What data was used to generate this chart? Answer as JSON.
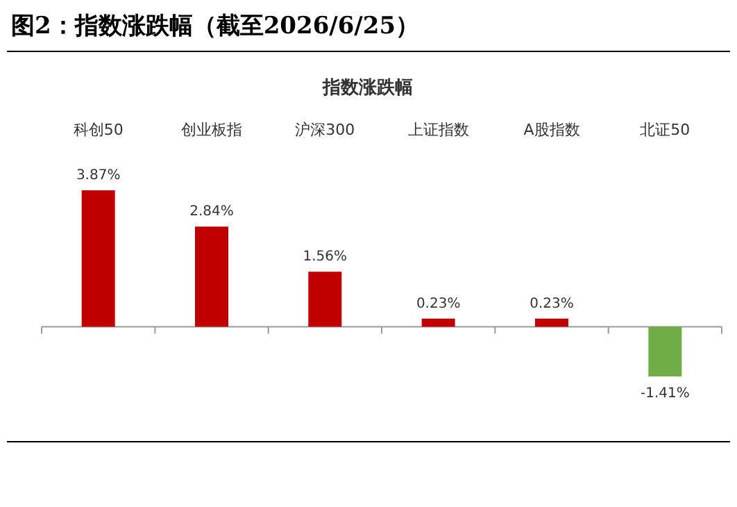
{
  "chart_data": {
    "type": "bar",
    "title": "图2：指数涨跌幅（截至2026/6/25）",
    "subtitle": "指数涨跌幅",
    "categories": [
      "科创50",
      "创业板指",
      "沪深300",
      "上证指数",
      "A股指数",
      "北证50"
    ],
    "values": [
      3.87,
      2.84,
      1.56,
      0.23,
      0.23,
      -1.41
    ],
    "value_labels": [
      "3.87%",
      "2.84%",
      "1.56%",
      "0.23%",
      "0.23%",
      "-1.41%"
    ],
    "colors": [
      "#c00000",
      "#c00000",
      "#c00000",
      "#c00000",
      "#c00000",
      "#70ad47"
    ]
  }
}
